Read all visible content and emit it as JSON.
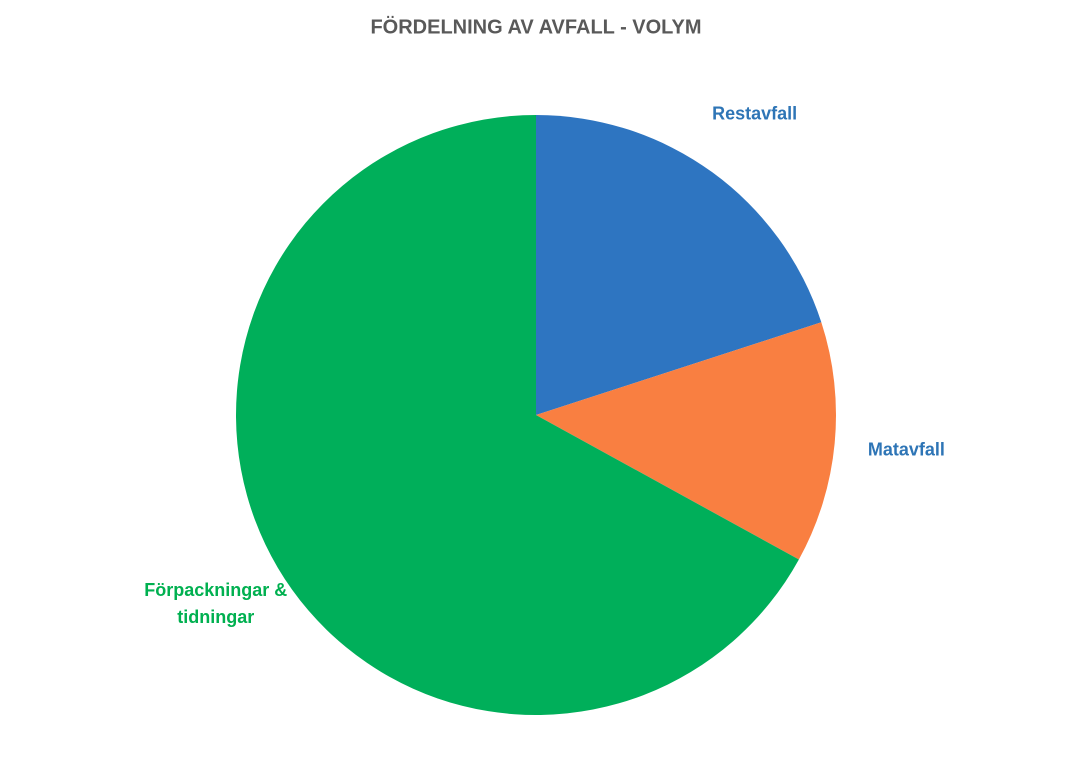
{
  "chart_data": {
    "type": "pie",
    "title": "FÖRDELNING AV AVFALL - VOLYM",
    "categories": [
      "Restavfall",
      "Matavfall",
      "Förpackningar & tidningar"
    ],
    "values": [
      20,
      13,
      67
    ],
    "colors": [
      "#2e75c1",
      "#f97f41",
      "#00af5a"
    ],
    "label_colors": [
      "#2e75b6",
      "#2e75b6",
      "#00b050"
    ]
  }
}
